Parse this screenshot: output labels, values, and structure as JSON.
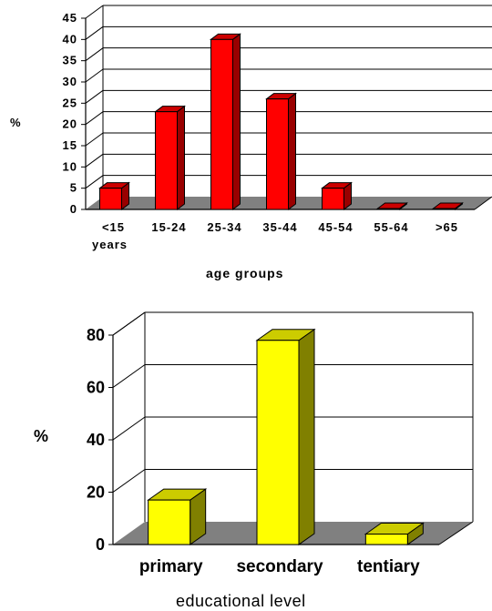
{
  "chart_data": [
    {
      "type": "bar",
      "categories": [
        "<15 years",
        "15-24",
        "25-34",
        "35-44",
        "45-54",
        "55-64",
        ">65"
      ],
      "category_lines": [
        [
          "<15",
          "years"
        ],
        [
          "15-24"
        ],
        [
          "25-34"
        ],
        [
          "35-44"
        ],
        [
          "45-54"
        ],
        [
          "55-64"
        ],
        [
          ">65"
        ]
      ],
      "values": [
        5,
        23,
        40,
        26,
        5,
        0,
        0
      ],
      "xlabel": "age groups",
      "ylabel": "%",
      "ylim": [
        0,
        45
      ],
      "yticks": [
        0,
        5,
        10,
        15,
        20,
        25,
        30,
        35,
        40,
        45
      ],
      "grid": true,
      "colors": {
        "front": "#ff0000",
        "side": "#990000",
        "top": "#cc0000",
        "floor": "#808080"
      }
    },
    {
      "type": "bar",
      "categories": [
        "primary",
        "secondary",
        "tentiary"
      ],
      "values": [
        17,
        78,
        4
      ],
      "xlabel": "educational level",
      "ylabel": "%",
      "ylim": [
        0,
        80
      ],
      "yticks": [
        0,
        20,
        40,
        60,
        80
      ],
      "grid": true,
      "colors": {
        "front": "#ffff00",
        "side": "#808000",
        "top": "#cccc00",
        "floor": "#808080"
      }
    }
  ]
}
